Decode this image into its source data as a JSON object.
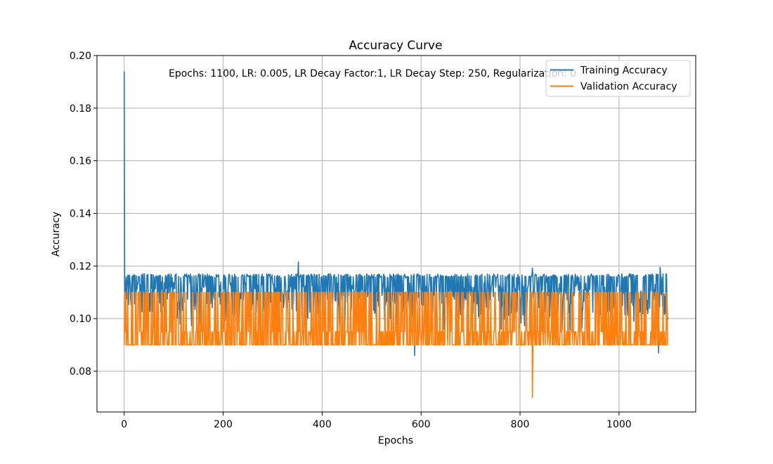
{
  "chart_data": {
    "type": "line",
    "title": "Accuracy Curve",
    "xlabel": "Epochs",
    "ylabel": "Accuracy",
    "xlim": [
      -55,
      1155
    ],
    "ylim": [
      0.0645,
      0.2
    ],
    "xticks": [
      0,
      200,
      400,
      600,
      800,
      1000
    ],
    "yticks": [
      0.08,
      0.1,
      0.12,
      0.14,
      0.16,
      0.18,
      0.2
    ],
    "xtick_labels": [
      "0",
      "200",
      "400",
      "600",
      "800",
      "1000"
    ],
    "ytick_labels": [
      "0.08",
      "0.10",
      "0.12",
      "0.14",
      "0.16",
      "0.18",
      "0.20"
    ],
    "grid": true,
    "legend_position": "top-right",
    "annotation": "Epochs: 1100, LR: 0.005, LR Decay Factor:1, LR Decay Step: 250, Regularization: 0",
    "epochs": 1100,
    "series": [
      {
        "name": "Training Accuracy",
        "color": "#1f77b4",
        "values_summary": {
          "start": 0.194,
          "typical_low": 0.101,
          "typical_high": 0.117,
          "dips": [
            [
              587,
              0.086
            ],
            [
              1080,
              0.087
            ]
          ],
          "peaks": [
            [
              352,
              0.1215
            ],
            [
              1083,
              0.1195
            ],
            [
              825,
              0.1192
            ]
          ]
        }
      },
      {
        "name": "Validation Accuracy",
        "color": "#ff7f0e",
        "values_summary": {
          "low": 0.09,
          "high": 0.11,
          "mid": 0.095,
          "dips": [
            [
              825,
              0.07
            ]
          ]
        }
      }
    ]
  }
}
